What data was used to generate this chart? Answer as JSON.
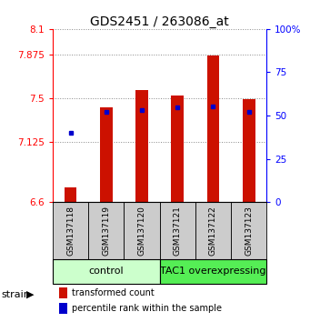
{
  "title": "GDS2451 / 263086_at",
  "samples": [
    "GSM137118",
    "GSM137119",
    "GSM137120",
    "GSM137121",
    "GSM137122",
    "GSM137123"
  ],
  "red_values": [
    6.73,
    7.42,
    7.57,
    7.52,
    7.87,
    7.49
  ],
  "blue_values": [
    7.2,
    7.38,
    7.4,
    7.42,
    7.43,
    7.38
  ],
  "ymin": 6.6,
  "ymax": 8.1,
  "yticks": [
    6.6,
    7.125,
    7.5,
    7.875,
    8.1
  ],
  "ytick_labels": [
    "6.6",
    "7.125",
    "7.5",
    "7.875",
    "8.1"
  ],
  "right_yticks": [
    0,
    25,
    50,
    75,
    100
  ],
  "right_ytick_labels": [
    "0",
    "25",
    "50",
    "75",
    "100%"
  ],
  "groups": [
    {
      "label": "control",
      "start": 0,
      "end": 3,
      "color": "#ccffcc"
    },
    {
      "label": "TAC1 overexpressing",
      "start": 3,
      "end": 6,
      "color": "#55ee55"
    }
  ],
  "bar_color": "#cc1100",
  "blue_color": "#0000cc",
  "bar_width": 0.35,
  "grid_color": "#888888",
  "bg_color": "#ffffff",
  "label_area_bg": "#cccccc",
  "red_label": "transformed count",
  "blue_label": "percentile rank within the sample",
  "strain_label": "strain",
  "title_fontsize": 10,
  "tick_fontsize": 7.5,
  "sample_fontsize": 6.5,
  "group_fontsize": 8,
  "legend_fontsize": 7
}
